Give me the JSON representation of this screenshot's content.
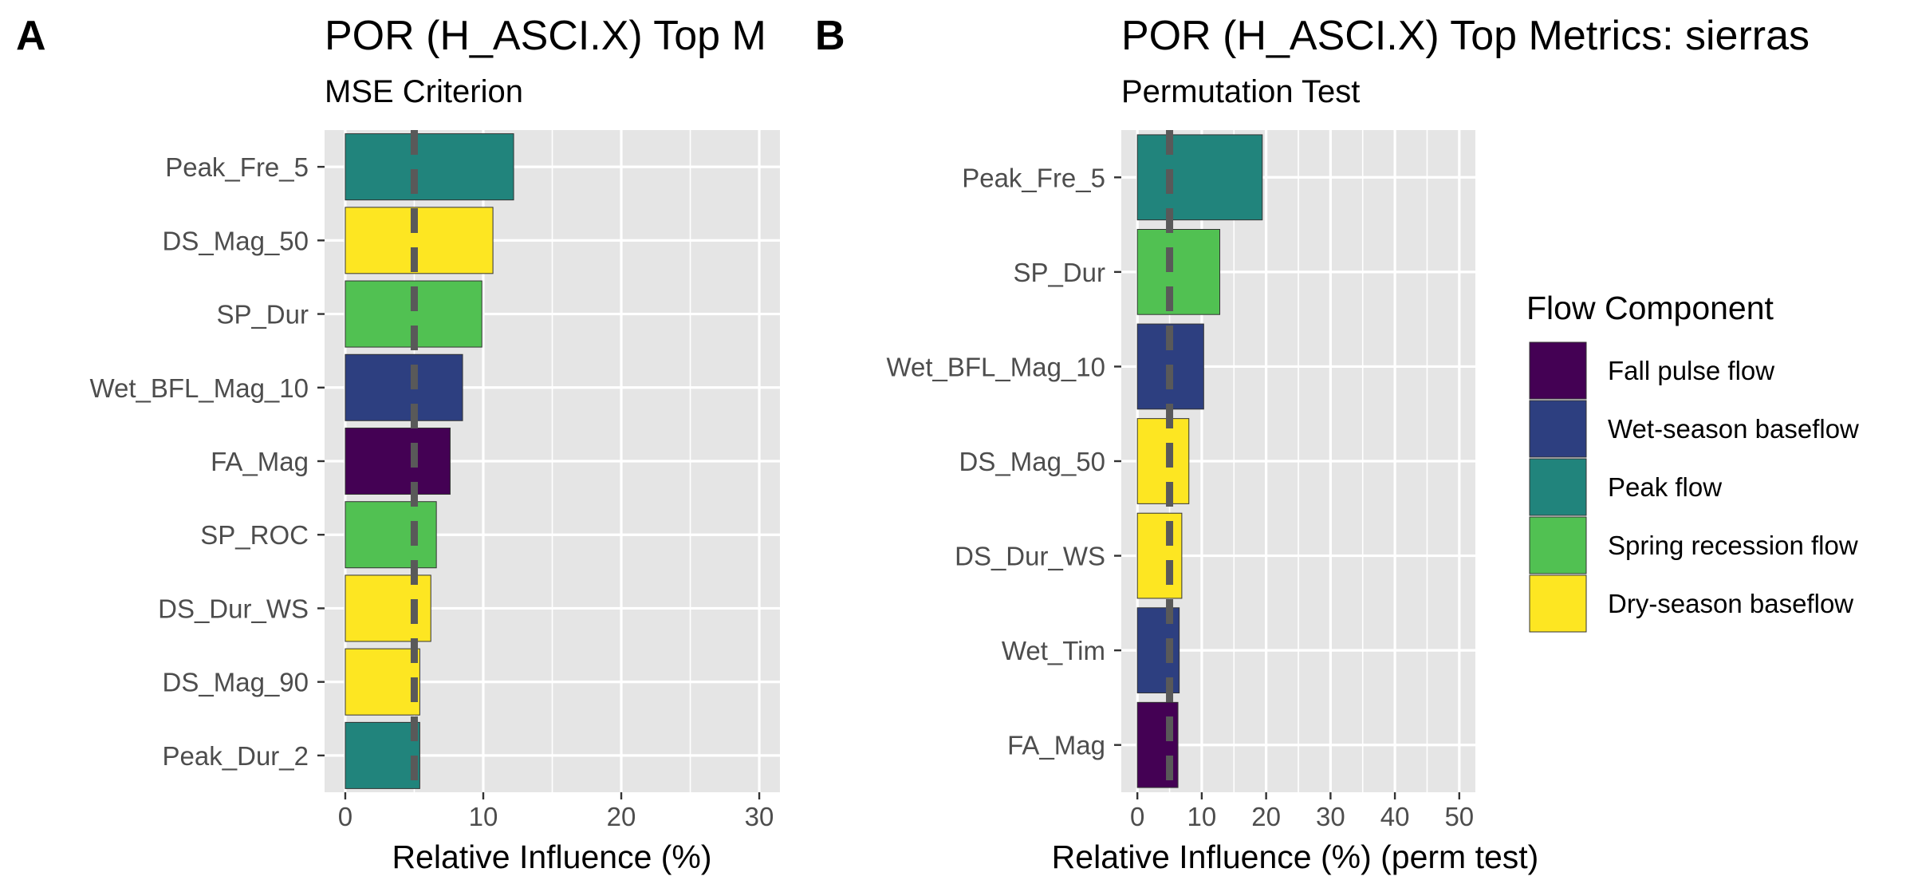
{
  "chart_data": [
    {
      "type": "bar",
      "orientation": "horizontal",
      "panel_label": "A",
      "title": "POR (H_ASCI.X) Top M",
      "subtitle": "MSE Criterion",
      "xlabel": "Relative Influence (%)",
      "ylabel": "",
      "xlim": [
        -1.5,
        31.5
      ],
      "xticks": [
        "0",
        "10",
        "20",
        "30"
      ],
      "reference_line": 5,
      "grid": true,
      "categories": [
        "Peak_Fre_5",
        "DS_Mag_50",
        "SP_Dur",
        "Wet_BFL_Mag_10",
        "FA_Mag",
        "SP_ROC",
        "DS_Dur_WS",
        "DS_Mag_90",
        "Peak_Dur_2"
      ],
      "values": [
        12.2,
        10.7,
        9.9,
        8.5,
        7.6,
        6.6,
        6.2,
        5.4,
        5.4
      ],
      "components": [
        "Peak flow",
        "Dry-season baseflow",
        "Spring recession flow",
        "Wet-season baseflow",
        "Fall pulse flow",
        "Spring recession flow",
        "Dry-season baseflow",
        "Dry-season baseflow",
        "Peak flow"
      ]
    },
    {
      "type": "bar",
      "orientation": "horizontal",
      "panel_label": "B",
      "title": "POR (H_ASCI.X) Top Metrics: sierras",
      "subtitle": "Permutation Test",
      "xlabel": "Relative Influence (%) (perm test)",
      "ylabel": "",
      "xlim": [
        -2.5,
        52.5
      ],
      "xticks": [
        "0",
        "10",
        "20",
        "30",
        "40",
        "50"
      ],
      "reference_line": 5,
      "grid": true,
      "categories": [
        "Peak_Fre_5",
        "SP_Dur",
        "Wet_BFL_Mag_10",
        "DS_Mag_50",
        "DS_Dur_WS",
        "Wet_Tim",
        "FA_Mag"
      ],
      "values": [
        19.4,
        12.8,
        10.3,
        8.0,
        6.9,
        6.5,
        6.3
      ],
      "components": [
        "Peak flow",
        "Spring recession flow",
        "Wet-season baseflow",
        "Dry-season baseflow",
        "Dry-season baseflow",
        "Wet-season baseflow",
        "Fall pulse flow"
      ]
    }
  ],
  "legend": {
    "title": "Flow Component",
    "placement": "right",
    "items": [
      {
        "label": "Fall pulse flow",
        "color": "#440154"
      },
      {
        "label": "Wet-season baseflow",
        "color": "#2d3f80"
      },
      {
        "label": "Peak flow",
        "color": "#21847c"
      },
      {
        "label": "Spring recession flow",
        "color": "#51c152"
      },
      {
        "label": "Dry-season baseflow",
        "color": "#fde622"
      }
    ]
  },
  "colors": {
    "panel_background": "#e5e5e5",
    "grid_major": "#ffffff",
    "reference_line": "#595959",
    "bar_border": "#333333"
  }
}
